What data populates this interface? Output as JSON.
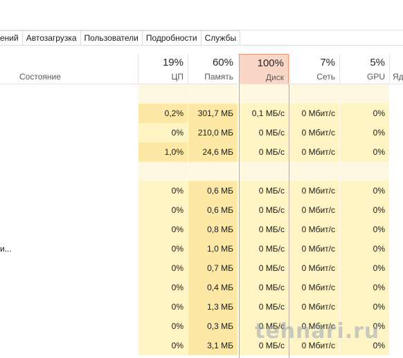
{
  "tabs": [
    "ений",
    "Автозагрузка",
    "Пользователи",
    "Подробности",
    "Службы"
  ],
  "status_header": "Состояние",
  "columns": [
    {
      "key": "cpu",
      "pct": "19%",
      "name": "ЦП"
    },
    {
      "key": "mem",
      "pct": "60%",
      "name": "Память"
    },
    {
      "key": "disk",
      "pct": "100%",
      "name": "Диск"
    },
    {
      "key": "net",
      "pct": "7%",
      "name": "Сеть"
    },
    {
      "key": "gpu",
      "pct": "5%",
      "name": "GPU"
    },
    {
      "key": "gpu_engine",
      "pct": "",
      "name": "Яд"
    }
  ],
  "rows": [
    {
      "name": "",
      "cpu": "",
      "mem": "",
      "disk": "",
      "net": "",
      "gpu": ""
    },
    {
      "name": "",
      "cpu": "0,2%",
      "mem": "301,7 МБ",
      "disk": "0,1 МБ/с",
      "net": "0 Мбит/с",
      "gpu": "0%"
    },
    {
      "name": "",
      "cpu": "0%",
      "mem": "210,0 МБ",
      "disk": "0 МБ/с",
      "net": "0 Мбит/с",
      "gpu": "0%"
    },
    {
      "name": "",
      "cpu": "1,0%",
      "mem": "24,6 МБ",
      "disk": "0 МБ/с",
      "net": "0 Мбит/с",
      "gpu": "0%"
    },
    {
      "name": "",
      "cpu": "",
      "mem": "",
      "disk": "",
      "net": "",
      "gpu": ""
    },
    {
      "name": "",
      "cpu": "0%",
      "mem": "0,6 МБ",
      "disk": "0 МБ/с",
      "net": "0 Мбит/с",
      "gpu": "0%"
    },
    {
      "name": "",
      "cpu": "0%",
      "mem": "0,6 МБ",
      "disk": "0 МБ/с",
      "net": "0 Мбит/с",
      "gpu": "0%"
    },
    {
      "name": "",
      "cpu": "0%",
      "mem": "0,8 МБ",
      "disk": "0 МБ/с",
      "net": "0 Мбит/с",
      "gpu": "0%"
    },
    {
      "name": "и...",
      "cpu": "0%",
      "mem": "1,0 МБ",
      "disk": "0 МБ/с",
      "net": "0 Мбит/с",
      "gpu": "0%"
    },
    {
      "name": "",
      "cpu": "0%",
      "mem": "0,7 МБ",
      "disk": "0 МБ/с",
      "net": "0 Мбит/с",
      "gpu": "0%"
    },
    {
      "name": "",
      "cpu": "0%",
      "mem": "0,4 МБ",
      "disk": "0 МБ/с",
      "net": "0 Мбит/с",
      "gpu": "0%"
    },
    {
      "name": "",
      "cpu": "0%",
      "mem": "1,3 МБ",
      "disk": "0 МБ/с",
      "net": "0 Мбит/с",
      "gpu": "0%"
    },
    {
      "name": "",
      "cpu": "0%",
      "mem": "0,3 МБ",
      "disk": "0 МБ/с",
      "net": "0 Мбит/с",
      "gpu": "0%"
    },
    {
      "name": "",
      "cpu": "0%",
      "mem": "3,1 МБ",
      "disk": "0 МБ/с",
      "net": "0 Мбит/с",
      "gpu": "0%"
    }
  ],
  "colors": {
    "cell_light": "#fff4c4",
    "cell_medium": "#fde8a6",
    "group_row": "#fff8e1",
    "disk_header": "#f9d6c6",
    "disk_border": "#e8956d"
  },
  "watermark": "tehnari.ru"
}
